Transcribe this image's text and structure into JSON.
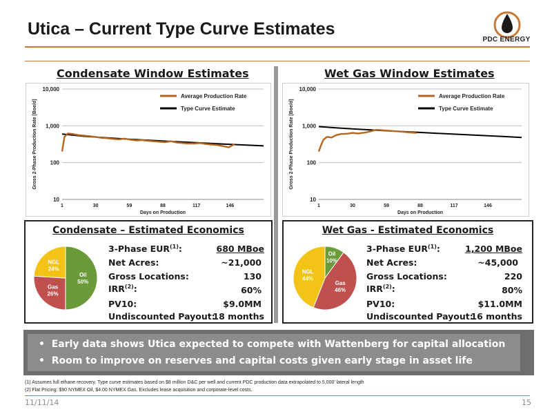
{
  "slide": {
    "title": "Utica – Current Type Curve Estimates",
    "logo_text": "PDC ENERGY",
    "date": "11/11/14",
    "page": "15"
  },
  "left": {
    "section_title": "Condensate Window Estimates",
    "econ": {
      "title": "Condensate – Estimated Economics",
      "eur_label": "3-Phase EUR",
      "eur_sup": "(1)",
      "eur_value": "680 MBoe",
      "acres_label": "Net Acres:",
      "acres_value": "~21,000",
      "locations_label": "Gross Locations:",
      "locations_value": "130",
      "irr_label": "IRR",
      "irr_sup": "(2)",
      "irr_value": "60%",
      "pv10_label": "PV10:",
      "pv10_value": "$9.0MM",
      "payout_label": "Undiscounted Payout:",
      "payout_value": "18 months"
    }
  },
  "right": {
    "section_title": "Wet Gas Window Estimates",
    "econ": {
      "title": "Wet Gas - Estimated Economics",
      "eur_label": "3-Phase EUR",
      "eur_sup": "(1)",
      "eur_value": "1,200 MBoe",
      "acres_label": "Net Acres:",
      "acres_value": "~45,000",
      "locations_label": "Gross Locations:",
      "locations_value": "220",
      "irr_label": "IRR",
      "irr_sup": "(2)",
      "irr_value": "80%",
      "pv10_label": "PV10:",
      "pv10_value": "$11.0MM",
      "payout_label": "Undiscounted Payout:",
      "payout_value": "16 months"
    }
  },
  "bullets": [
    "Early data shows Utica expected to compete with Wattenberg for capital allocation",
    "Room to improve on reserves and capital costs given early stage in asset life"
  ],
  "footnotes": [
    "(1)  Assumes full ethane recovery. Type curve estimates based on $8 million D&C per well and current  PDC production data extrapolated to 5,000’ lateral length",
    "(2) Flat Pricing: $90 NYMEX Oil, $4.00 NYMEX Gas. Excludes lease acquisition and corporate-level costs."
  ],
  "colors": {
    "accent": "#c87a35",
    "avg_line": "#b5651d",
    "type_line": "#000000",
    "oil": "#6a9a3a",
    "gas": "#c0504d",
    "ngl": "#f2c314"
  },
  "chart_data": [
    {
      "type": "line",
      "name": "condensate-window",
      "ylabel": "Gross 2-Phase Production Rate  [Boe/d]",
      "xlabel": "Days on Production",
      "yscale": "log",
      "ylim": [
        10,
        10000
      ],
      "xlim": [
        1,
        175
      ],
      "xticks": [
        1,
        30,
        59,
        88,
        117,
        146
      ],
      "yticks": [
        10,
        100,
        1000,
        10000
      ],
      "ytick_labels": [
        "10",
        "100",
        "1,000",
        "10,000"
      ],
      "legend": [
        "Average Production Rate",
        "Type Curve Estimate"
      ],
      "legend_position": "top-right",
      "series": [
        {
          "name": "Type Curve Estimate",
          "x": [
            1,
            20,
            40,
            60,
            80,
            100,
            120,
            140,
            160,
            175
          ],
          "y": [
            600,
            520,
            470,
            430,
            400,
            370,
            345,
            320,
            300,
            285
          ]
        },
        {
          "name": "Average Production Rate",
          "x": [
            1,
            3,
            6,
            10,
            15,
            20,
            25,
            30,
            35,
            40,
            45,
            50,
            55,
            60,
            65,
            70,
            75,
            80,
            85,
            90,
            95,
            100,
            105,
            110,
            115,
            120,
            125,
            130,
            135,
            140,
            145,
            150
          ],
          "y": [
            200,
            500,
            620,
            600,
            560,
            540,
            520,
            500,
            470,
            460,
            440,
            430,
            450,
            420,
            400,
            410,
            390,
            380,
            370,
            360,
            380,
            350,
            340,
            330,
            330,
            340,
            320,
            310,
            300,
            280,
            260,
            320
          ]
        }
      ]
    },
    {
      "type": "line",
      "name": "wet-gas-window",
      "ylabel": "Gross 2-Phase Production Rate  [Boe/d]",
      "xlabel": "Days on Production",
      "yscale": "log",
      "ylim": [
        10,
        10000
      ],
      "xlim": [
        1,
        175
      ],
      "xticks": [
        1,
        30,
        59,
        88,
        117,
        146
      ],
      "yticks": [
        10,
        100,
        1000,
        10000
      ],
      "ytick_labels": [
        "10",
        "100",
        "1,000",
        "10,000"
      ],
      "legend": [
        "Average Production Rate",
        "Type Curve Estimate"
      ],
      "legend_position": "top-right",
      "series": [
        {
          "name": "Type Curve Estimate",
          "x": [
            1,
            20,
            40,
            60,
            80,
            100,
            120,
            140,
            160,
            175
          ],
          "y": [
            950,
            860,
            790,
            730,
            680,
            630,
            590,
            550,
            510,
            480
          ]
        },
        {
          "name": "Average Production Rate",
          "x": [
            1,
            3,
            5,
            8,
            12,
            16,
            20,
            25,
            30,
            35,
            40,
            45,
            50,
            55,
            60,
            65,
            70,
            75,
            80,
            85
          ],
          "y": [
            200,
            300,
            420,
            500,
            480,
            560,
            600,
            610,
            640,
            620,
            650,
            700,
            780,
            760,
            740,
            720,
            700,
            680,
            660,
            640
          ]
        }
      ]
    },
    {
      "type": "pie",
      "name": "condensate-mix",
      "labels": [
        "Oil",
        "Gas",
        "NGL"
      ],
      "values": [
        50,
        26,
        24
      ]
    },
    {
      "type": "pie",
      "name": "wet-gas-mix",
      "labels": [
        "Oil",
        "Gas",
        "NGL"
      ],
      "values": [
        10,
        46,
        44
      ]
    }
  ]
}
